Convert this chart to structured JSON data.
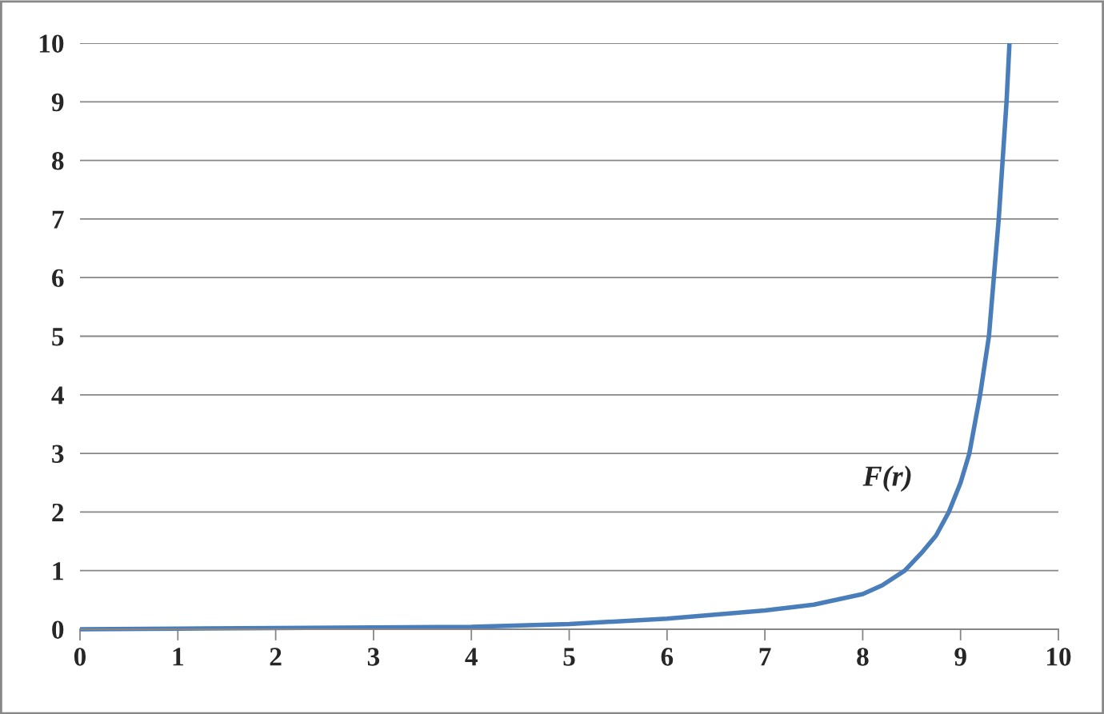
{
  "chart_data": {
    "type": "line",
    "series": [
      {
        "name": "F(r)",
        "color": "#4a7ebb",
        "x": [
          0,
          1,
          2,
          3,
          4,
          5,
          6,
          7,
          7.5,
          8,
          8.2,
          8.43,
          8.6,
          8.75,
          8.88,
          9.0,
          9.09,
          9.2,
          9.29,
          9.34,
          9.39,
          9.43,
          9.47,
          9.5
        ],
        "values": [
          0,
          0.01,
          0.02,
          0.03,
          0.04,
          0.09,
          0.18,
          0.32,
          0.42,
          0.6,
          0.75,
          1,
          1.3,
          1.6,
          2,
          2.5,
          3,
          4,
          5,
          6,
          7,
          8,
          9,
          10
        ]
      }
    ],
    "xlim": [
      0,
      10
    ],
    "xticks": [
      0,
      1,
      2,
      3,
      4,
      5,
      6,
      7,
      8,
      9,
      10
    ],
    "ylim": [
      0,
      10
    ],
    "yticks": [
      0,
      1,
      2,
      3,
      4,
      5,
      6,
      7,
      8,
      9,
      10
    ],
    "grid": "y"
  }
}
